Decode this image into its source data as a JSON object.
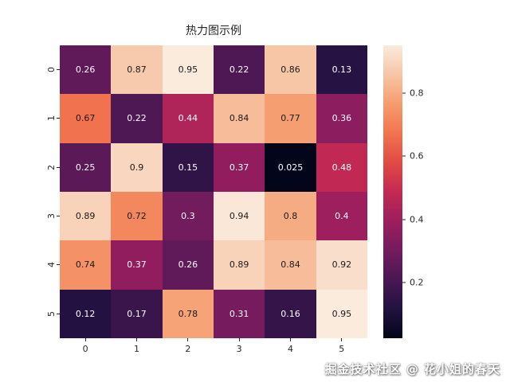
{
  "chart_data": {
    "type": "heatmap",
    "title": "热力图示例",
    "x_labels": [
      "0",
      "1",
      "2",
      "3",
      "4",
      "5"
    ],
    "y_labels": [
      "0",
      "1",
      "2",
      "3",
      "4",
      "5"
    ],
    "values": [
      [
        0.26,
        0.87,
        0.95,
        0.22,
        0.86,
        0.13
      ],
      [
        0.67,
        0.22,
        0.44,
        0.84,
        0.77,
        0.36
      ],
      [
        0.25,
        0.9,
        0.15,
        0.37,
        0.025,
        0.48
      ],
      [
        0.89,
        0.72,
        0.3,
        0.94,
        0.8,
        0.4
      ],
      [
        0.74,
        0.37,
        0.26,
        0.89,
        0.84,
        0.92
      ],
      [
        0.12,
        0.17,
        0.78,
        0.31,
        0.16,
        0.95
      ]
    ],
    "vmin": 0.025,
    "vmax": 0.95,
    "colormap": "rocket",
    "colormap_stops": [
      {
        "t": 0.0,
        "color": "#03051A"
      },
      {
        "t": 0.1,
        "color": "#221240"
      },
      {
        "t": 0.2,
        "color": "#4A1754"
      },
      {
        "t": 0.3,
        "color": "#731C5E"
      },
      {
        "t": 0.4,
        "color": "#9C1E5E"
      },
      {
        "t": 0.5,
        "color": "#C42A53"
      },
      {
        "t": 0.6,
        "color": "#E24B43"
      },
      {
        "t": 0.7,
        "color": "#F1734F"
      },
      {
        "t": 0.8,
        "color": "#F59C6E"
      },
      {
        "t": 0.9,
        "color": "#F7C5A5"
      },
      {
        "t": 1.0,
        "color": "#FAEBDD"
      }
    ],
    "annotation_dark_color": "#1a1a1a",
    "annotation_light_color": "#ffffff",
    "colorbar_ticks": [
      0.2,
      0.4,
      0.6,
      0.8
    ],
    "colorbar_tick_labels": [
      "0.2",
      "0.4",
      "0.6",
      "0.8"
    ],
    "legend_position": "right",
    "grid": false
  },
  "watermark": "掘金技术社区 @ 花小姐的春天"
}
